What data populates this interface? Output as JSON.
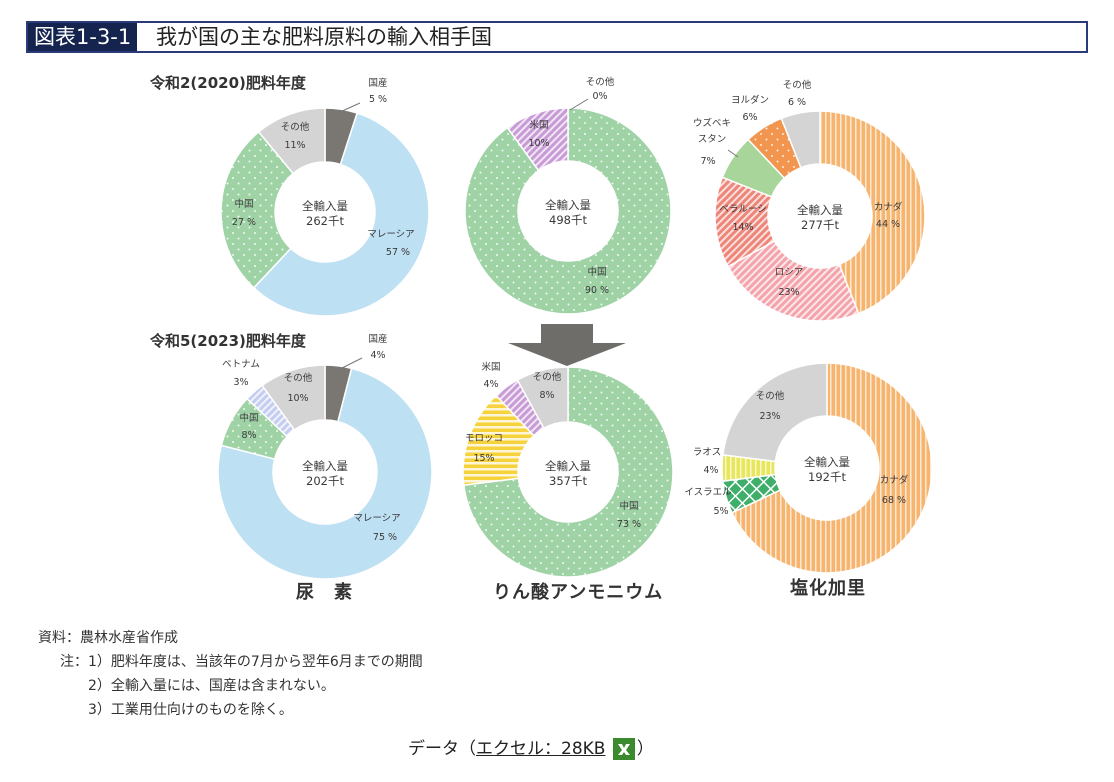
{
  "header": {
    "figure_number": "図表1-3-1",
    "title": "我が国の主な肥料原料の輸入相手国"
  },
  "colors": {
    "header_border": "#2b3a78",
    "header_badge_bg": "#14244f",
    "domestic": "#7a7672",
    "malaysia": "#bde0f3",
    "china": "#9fd3a6",
    "other": "#d4d4d4",
    "vietnam": "#c4cdf0",
    "usa": "#c89bd6",
    "morocco": "#f6d23c",
    "canada": "#f6b46e",
    "russia": "#f4a3aa",
    "belarus": "#ee8579",
    "uzbekistan": "#a7d59a",
    "jordan": "#f1954f",
    "laos": "#e8e65a",
    "israel": "#3fae6a",
    "arrow": "#6f6d6a"
  },
  "chart_data": [
    {
      "type": "pie",
      "variant": "donut",
      "product": "尿素",
      "year_label": "令和2(2020)肥料年度",
      "center_label": "全輸入量",
      "total": "262千t",
      "slices": [
        {
          "name": "国産",
          "value": 5,
          "label": "5 %",
          "color_key": "domestic",
          "pattern": "solid"
        },
        {
          "name": "マレーシア",
          "value": 57,
          "label": "57 %",
          "color_key": "malaysia",
          "pattern": "solid"
        },
        {
          "name": "中国",
          "value": 27,
          "label": "27 %",
          "color_key": "china",
          "pattern": "dots"
        },
        {
          "name": "その他",
          "value": 11,
          "label": "11%",
          "color_key": "other",
          "pattern": "solid"
        }
      ]
    },
    {
      "type": "pie",
      "variant": "donut",
      "product": "りん酸アンモニウム",
      "year_label": "令和2(2020)肥料年度",
      "center_label": "全輸入量",
      "total": "498千t",
      "slices": [
        {
          "name": "中国",
          "value": 90,
          "label": "90 %",
          "color_key": "china",
          "pattern": "dots"
        },
        {
          "name": "米国",
          "value": 10,
          "label": "10%",
          "color_key": "usa",
          "pattern": "diag"
        },
        {
          "name": "その他",
          "value": 0,
          "label": "0%",
          "color_key": "other",
          "pattern": "solid"
        }
      ]
    },
    {
      "type": "pie",
      "variant": "donut",
      "product": "塩化加里",
      "year_label": "令和2(2020)肥料年度",
      "center_label": "全輸入量",
      "total": "277千t",
      "slices": [
        {
          "name": "カナダ",
          "value": 44,
          "label": "44 %",
          "color_key": "canada",
          "pattern": "vstripe"
        },
        {
          "name": "ロシア",
          "value": 23,
          "label": "23%",
          "color_key": "russia",
          "pattern": "diag"
        },
        {
          "name": "ベラルーシ",
          "value": 14,
          "label": "14%",
          "color_key": "belarus",
          "pattern": "diag"
        },
        {
          "name": "ウズベキスタン",
          "value": 7,
          "label": "7%",
          "color_key": "uzbekistan",
          "pattern": "solid"
        },
        {
          "name": "ヨルダン",
          "value": 6,
          "label": "6%",
          "color_key": "jordan",
          "pattern": "dots"
        },
        {
          "name": "その他",
          "value": 6,
          "label": "6 %",
          "color_key": "other",
          "pattern": "solid"
        }
      ]
    },
    {
      "type": "pie",
      "variant": "donut",
      "product": "尿素",
      "year_label": "令和5(2023)肥料年度",
      "center_label": "全輸入量",
      "total": "202千t",
      "slices": [
        {
          "name": "国産",
          "value": 4,
          "label": "4%",
          "color_key": "domestic",
          "pattern": "solid"
        },
        {
          "name": "マレーシア",
          "value": 75,
          "label": "75 %",
          "color_key": "malaysia",
          "pattern": "solid"
        },
        {
          "name": "中国",
          "value": 8,
          "label": "8%",
          "color_key": "china",
          "pattern": "dots"
        },
        {
          "name": "ベトナム",
          "value": 3,
          "label": "3%",
          "color_key": "vietnam",
          "pattern": "diag"
        },
        {
          "name": "その他",
          "value": 10,
          "label": "10%",
          "color_key": "other",
          "pattern": "solid"
        }
      ]
    },
    {
      "type": "pie",
      "variant": "donut",
      "product": "りん酸アンモニウム",
      "year_label": "令和5(2023)肥料年度",
      "center_label": "全輸入量",
      "total": "357千t",
      "slices": [
        {
          "name": "中国",
          "value": 73,
          "label": "73 %",
          "color_key": "china",
          "pattern": "dots"
        },
        {
          "name": "モロッコ",
          "value": 15,
          "label": "15%",
          "color_key": "morocco",
          "pattern": "hstripe"
        },
        {
          "name": "米国",
          "value": 4,
          "label": "4%",
          "color_key": "usa",
          "pattern": "diag"
        },
        {
          "name": "その他",
          "value": 8,
          "label": "8%",
          "color_key": "other",
          "pattern": "solid"
        }
      ]
    },
    {
      "type": "pie",
      "variant": "donut",
      "product": "塩化加里",
      "year_label": "令和5(2023)肥料年度",
      "center_label": "全輸入量",
      "total": "192千t",
      "slices": [
        {
          "name": "カナダ",
          "value": 68,
          "label": "68 %",
          "color_key": "canada",
          "pattern": "vstripe"
        },
        {
          "name": "イスラエル",
          "value": 5,
          "label": "5%",
          "color_key": "israel",
          "pattern": "lattice"
        },
        {
          "name": "ラオス",
          "value": 4,
          "label": "4%",
          "color_key": "laos",
          "pattern": "vstripe"
        },
        {
          "name": "その他",
          "value": 23,
          "label": "23%",
          "color_key": "other",
          "pattern": "solid"
        }
      ]
    }
  ],
  "year_labels": {
    "y2020": "令和2(2020)肥料年度",
    "y2023": "令和5(2023)肥料年度"
  },
  "category_labels": {
    "urea": "尿　素",
    "map": "りん酸アンモニウム",
    "kcl": "塩化加里"
  },
  "notes": {
    "source": "資料：農林水産省作成",
    "note1": "注：1）肥料年度は、当該年の7月から翌年6月までの期間",
    "note2": "2）全輸入量には、国産は含まれない。",
    "note3": "3）工業用仕向けのものを除く。"
  },
  "footer": {
    "prefix": "データ（",
    "link_text": "エクセル：28KB",
    "suffix": "）",
    "icon": "excel-file-icon"
  }
}
